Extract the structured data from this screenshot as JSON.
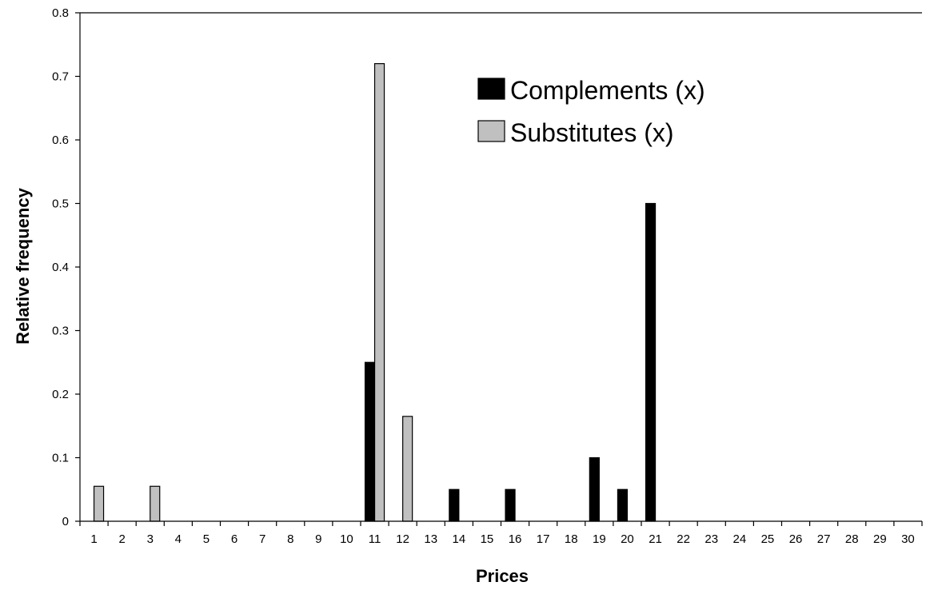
{
  "chart_data": {
    "type": "bar",
    "title": "",
    "xlabel": "Prices",
    "ylabel": "Relative frequency",
    "ylim": [
      0,
      0.8
    ],
    "yticks": [
      "0",
      "0.1",
      "0.2",
      "0.3",
      "0.4",
      "0.5",
      "0.6",
      "0.7",
      "0.8"
    ],
    "categories": [
      "1",
      "2",
      "3",
      "4",
      "5",
      "6",
      "7",
      "8",
      "9",
      "10",
      "11",
      "12",
      "13",
      "14",
      "15",
      "16",
      "17",
      "18",
      "19",
      "20",
      "21",
      "22",
      "23",
      "24",
      "25",
      "26",
      "27",
      "28",
      "29",
      "30"
    ],
    "legend_position": "top-right",
    "grid": false,
    "series": [
      {
        "name": "Complements (x)",
        "color": "#000000",
        "values": [
          0,
          0,
          0,
          0,
          0,
          0,
          0,
          0,
          0,
          0,
          0.25,
          0,
          0,
          0.05,
          0,
          0.05,
          0,
          0,
          0.1,
          0.05,
          0.5,
          0,
          0,
          0,
          0,
          0,
          0,
          0,
          0,
          0
        ]
      },
      {
        "name": "Substitutes (x)",
        "color": "#c0c0c0",
        "values": [
          0.055,
          0,
          0.055,
          0,
          0,
          0,
          0,
          0,
          0,
          0,
          0.72,
          0.165,
          0,
          0,
          0,
          0,
          0,
          0,
          0,
          0,
          0,
          0,
          0,
          0,
          0,
          0,
          0,
          0,
          0,
          0
        ]
      }
    ]
  }
}
